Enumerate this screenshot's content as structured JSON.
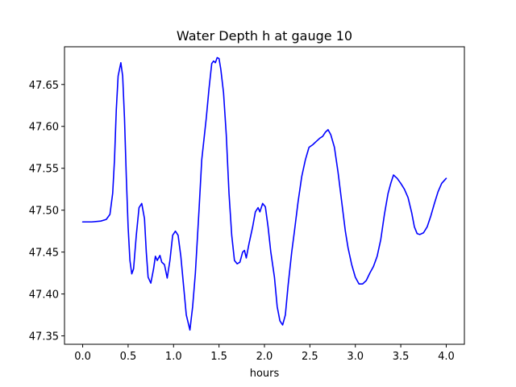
{
  "chart_data": {
    "type": "line",
    "title": "Water Depth h at gauge 10",
    "xlabel": "hours",
    "ylabel": "",
    "xlim": [
      -0.2,
      4.2
    ],
    "ylim": [
      47.34,
      47.695
    ],
    "x_ticks": [
      0.0,
      0.5,
      1.0,
      1.5,
      2.0,
      2.5,
      3.0,
      3.5,
      4.0
    ],
    "x_tick_labels": [
      "0.0",
      "0.5",
      "1.0",
      "1.5",
      "2.0",
      "2.5",
      "3.0",
      "3.5",
      "4.0"
    ],
    "y_ticks": [
      47.35,
      47.4,
      47.45,
      47.5,
      47.55,
      47.6,
      47.65
    ],
    "y_tick_labels": [
      "47.35",
      "47.40",
      "47.45",
      "47.50",
      "47.55",
      "47.60",
      "47.65"
    ],
    "grid": false,
    "legend": "none",
    "series": [
      {
        "color": "#0000ff",
        "points": [
          [
            0.0,
            47.486
          ],
          [
            0.1,
            47.486
          ],
          [
            0.2,
            47.487
          ],
          [
            0.26,
            47.489
          ],
          [
            0.3,
            47.495
          ],
          [
            0.33,
            47.52
          ],
          [
            0.35,
            47.56
          ],
          [
            0.37,
            47.62
          ],
          [
            0.39,
            47.66
          ],
          [
            0.42,
            47.676
          ],
          [
            0.44,
            47.66
          ],
          [
            0.46,
            47.61
          ],
          [
            0.48,
            47.54
          ],
          [
            0.5,
            47.48
          ],
          [
            0.52,
            47.44
          ],
          [
            0.54,
            47.424
          ],
          [
            0.56,
            47.43
          ],
          [
            0.59,
            47.47
          ],
          [
            0.62,
            47.503
          ],
          [
            0.65,
            47.508
          ],
          [
            0.68,
            47.49
          ],
          [
            0.7,
            47.45
          ],
          [
            0.72,
            47.42
          ],
          [
            0.75,
            47.413
          ],
          [
            0.78,
            47.43
          ],
          [
            0.8,
            47.445
          ],
          [
            0.82,
            47.44
          ],
          [
            0.85,
            47.446
          ],
          [
            0.87,
            47.438
          ],
          [
            0.9,
            47.435
          ],
          [
            0.93,
            47.419
          ],
          [
            0.96,
            47.44
          ],
          [
            0.99,
            47.47
          ],
          [
            1.02,
            47.475
          ],
          [
            1.05,
            47.47
          ],
          [
            1.08,
            47.445
          ],
          [
            1.11,
            47.41
          ],
          [
            1.14,
            47.375
          ],
          [
            1.18,
            47.357
          ],
          [
            1.21,
            47.385
          ],
          [
            1.24,
            47.425
          ],
          [
            1.28,
            47.5
          ],
          [
            1.31,
            47.56
          ],
          [
            1.34,
            47.59
          ],
          [
            1.36,
            47.61
          ],
          [
            1.39,
            47.645
          ],
          [
            1.42,
            47.675
          ],
          [
            1.44,
            47.678
          ],
          [
            1.46,
            47.676
          ],
          [
            1.48,
            47.682
          ],
          [
            1.5,
            47.681
          ],
          [
            1.52,
            47.668
          ],
          [
            1.55,
            47.64
          ],
          [
            1.58,
            47.59
          ],
          [
            1.61,
            47.52
          ],
          [
            1.64,
            47.47
          ],
          [
            1.67,
            47.44
          ],
          [
            1.7,
            47.436
          ],
          [
            1.73,
            47.438
          ],
          [
            1.76,
            47.45
          ],
          [
            1.78,
            47.452
          ],
          [
            1.8,
            47.443
          ],
          [
            1.83,
            47.46
          ],
          [
            1.87,
            47.48
          ],
          [
            1.9,
            47.498
          ],
          [
            1.93,
            47.503
          ],
          [
            1.95,
            47.498
          ],
          [
            1.98,
            47.508
          ],
          [
            2.01,
            47.504
          ],
          [
            2.04,
            47.48
          ],
          [
            2.07,
            47.45
          ],
          [
            2.11,
            47.42
          ],
          [
            2.14,
            47.385
          ],
          [
            2.17,
            47.368
          ],
          [
            2.2,
            47.363
          ],
          [
            2.23,
            47.375
          ],
          [
            2.26,
            47.41
          ],
          [
            2.3,
            47.45
          ],
          [
            2.33,
            47.475
          ],
          [
            2.37,
            47.51
          ],
          [
            2.41,
            47.54
          ],
          [
            2.45,
            47.56
          ],
          [
            2.49,
            47.575
          ],
          [
            2.53,
            47.578
          ],
          [
            2.57,
            47.582
          ],
          [
            2.61,
            47.586
          ],
          [
            2.64,
            47.588
          ],
          [
            2.67,
            47.593
          ],
          [
            2.7,
            47.596
          ],
          [
            2.73,
            47.59
          ],
          [
            2.77,
            47.575
          ],
          [
            2.81,
            47.545
          ],
          [
            2.85,
            47.51
          ],
          [
            2.89,
            47.475
          ],
          [
            2.92,
            47.455
          ],
          [
            2.96,
            47.435
          ],
          [
            3.0,
            47.42
          ],
          [
            3.04,
            47.412
          ],
          [
            3.08,
            47.412
          ],
          [
            3.12,
            47.416
          ],
          [
            3.16,
            47.425
          ],
          [
            3.2,
            47.433
          ],
          [
            3.24,
            47.445
          ],
          [
            3.28,
            47.465
          ],
          [
            3.32,
            47.495
          ],
          [
            3.36,
            47.52
          ],
          [
            3.39,
            47.532
          ],
          [
            3.42,
            47.542
          ],
          [
            3.46,
            47.538
          ],
          [
            3.5,
            47.532
          ],
          [
            3.54,
            47.525
          ],
          [
            3.58,
            47.515
          ],
          [
            3.62,
            47.497
          ],
          [
            3.65,
            47.48
          ],
          [
            3.68,
            47.472
          ],
          [
            3.71,
            47.471
          ],
          [
            3.75,
            47.473
          ],
          [
            3.79,
            47.48
          ],
          [
            3.83,
            47.493
          ],
          [
            3.87,
            47.508
          ],
          [
            3.91,
            47.522
          ],
          [
            3.95,
            47.532
          ],
          [
            4.0,
            47.538
          ]
        ]
      }
    ]
  }
}
